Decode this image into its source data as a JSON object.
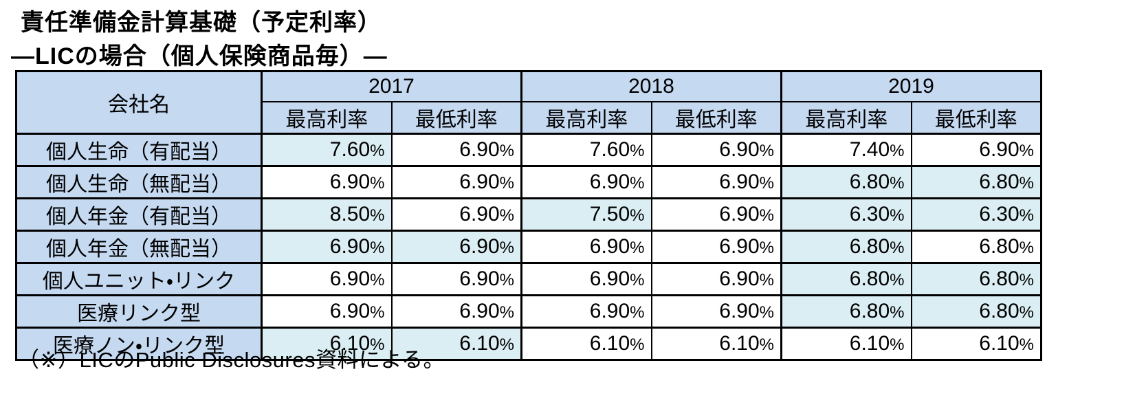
{
  "page": {
    "title": "責任準備金計算基礎（予定利率）",
    "subtitle": "―LICの場合（個人保険商品毎）―",
    "footnote": "（※）LICのPublic Disclosures資料による。"
  },
  "colors": {
    "header_bg": "#C5D9F1",
    "highlight_bg": "#DAEEF3",
    "border": "#000000"
  },
  "table": {
    "corner_header": "会社名",
    "years": [
      "2017",
      "2018",
      "2019"
    ],
    "sub_headers": [
      "最高利率",
      "最低利率"
    ],
    "rows": [
      {
        "name": "個人生命（有配当）",
        "values": [
          "7.60%",
          "6.90%",
          "7.60%",
          "6.90%",
          "7.40%",
          "6.90%"
        ],
        "highlighted": [
          true,
          false,
          false,
          false,
          false,
          false
        ]
      },
      {
        "name": "個人生命（無配当）",
        "values": [
          "6.90%",
          "6.90%",
          "6.90%",
          "6.90%",
          "6.80%",
          "6.80%"
        ],
        "highlighted": [
          false,
          false,
          false,
          false,
          true,
          true
        ]
      },
      {
        "name": "個人年金（有配当）",
        "values": [
          "8.50%",
          "6.90%",
          "7.50%",
          "6.90%",
          "6.30%",
          "6.30%"
        ],
        "highlighted": [
          true,
          false,
          true,
          false,
          true,
          true
        ]
      },
      {
        "name": "個人年金（無配当）",
        "values": [
          "6.90%",
          "6.90%",
          "6.90%",
          "6.90%",
          "6.80%",
          "6.80%"
        ],
        "highlighted": [
          true,
          true,
          false,
          false,
          true,
          false
        ]
      },
      {
        "name": "個人ユニット・リンク",
        "values": [
          "6.90%",
          "6.90%",
          "6.90%",
          "6.90%",
          "6.80%",
          "6.80%"
        ],
        "highlighted": [
          false,
          false,
          false,
          false,
          true,
          true
        ]
      },
      {
        "name": "医療リンク型",
        "values": [
          "6.90%",
          "6.90%",
          "6.90%",
          "6.90%",
          "6.80%",
          "6.80%"
        ],
        "highlighted": [
          false,
          false,
          false,
          false,
          true,
          true
        ]
      },
      {
        "name": "医療ノン・リンク型",
        "values": [
          "6.10%",
          "6.10%",
          "6.10%",
          "6.10%",
          "6.10%",
          "6.10%"
        ],
        "highlighted": [
          true,
          true,
          false,
          false,
          false,
          false
        ]
      }
    ]
  }
}
